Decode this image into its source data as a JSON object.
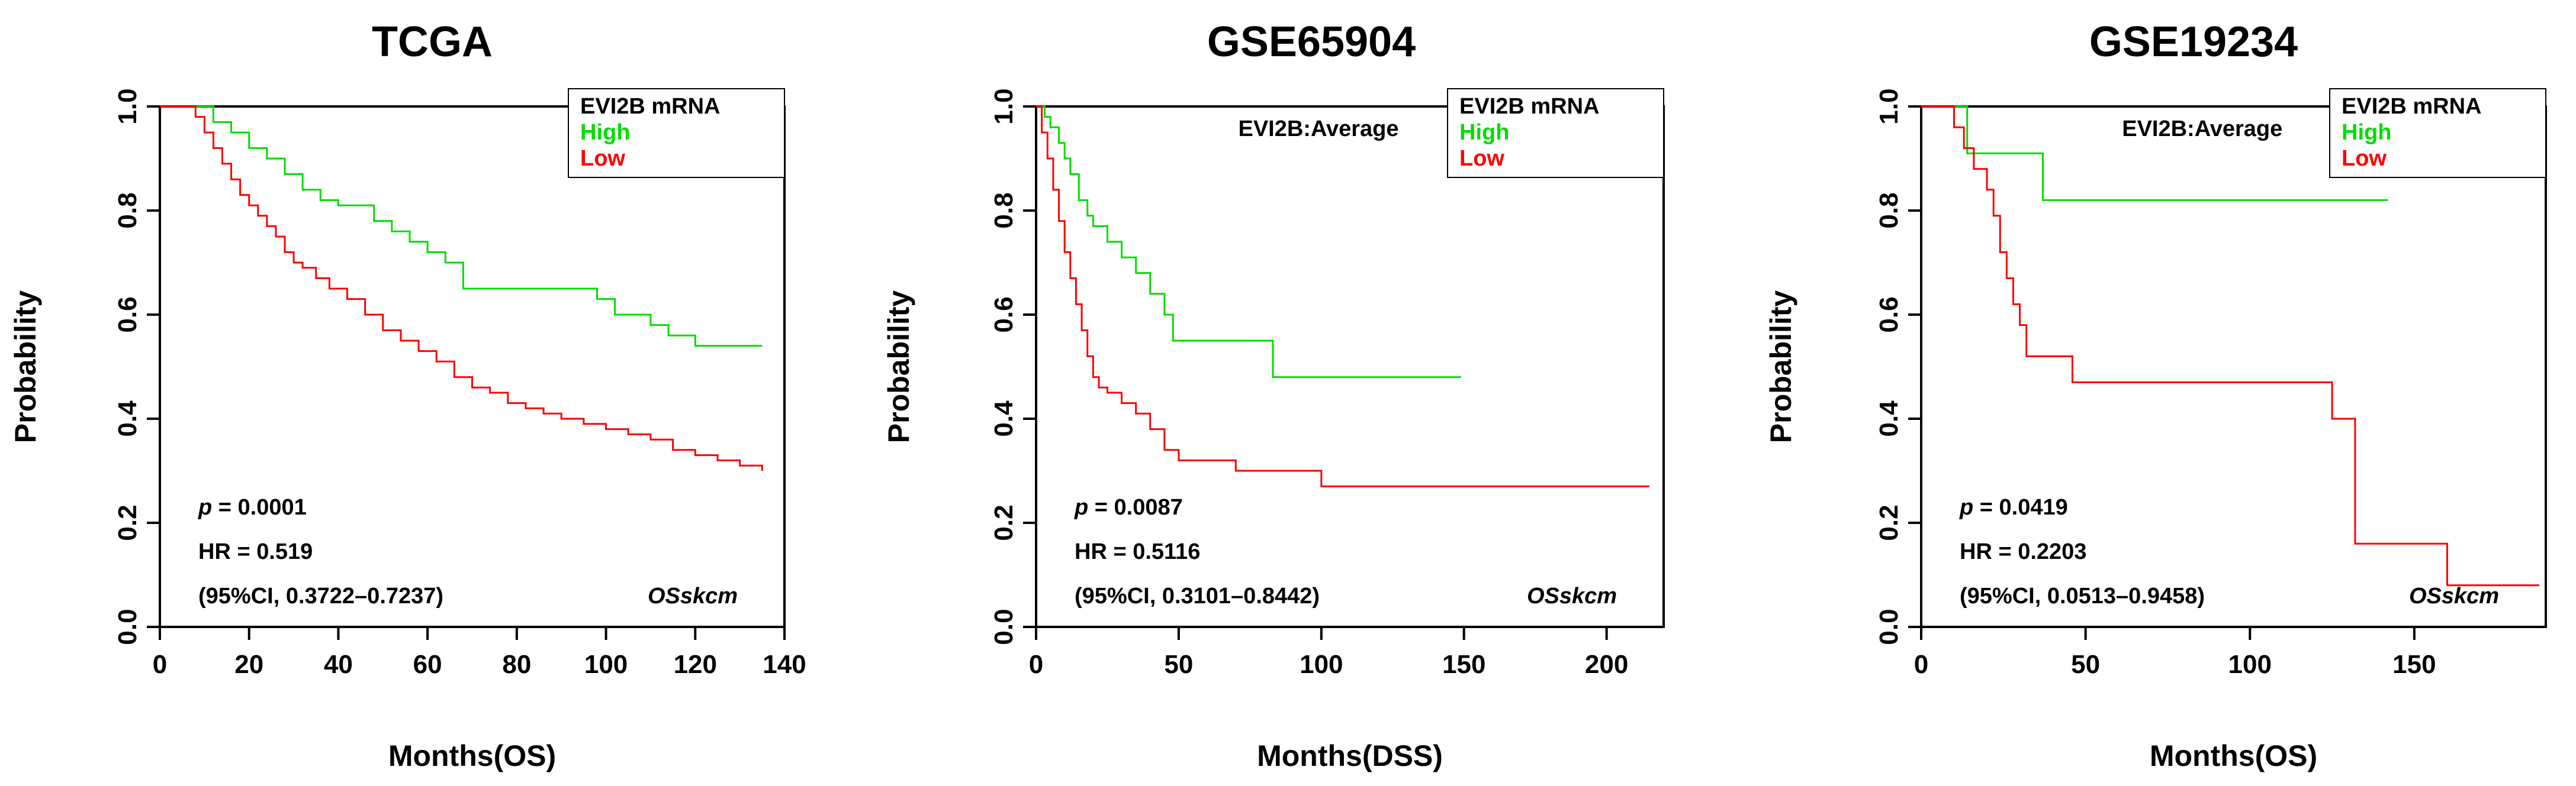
{
  "chart_data": [
    {
      "type": "line",
      "title": "TCGA",
      "xlabel": "Months(OS)",
      "ylabel": "Probability",
      "xlim": [
        0,
        140
      ],
      "ylim": [
        0,
        1
      ],
      "xticks": [
        0,
        20,
        40,
        60,
        80,
        100,
        120,
        140
      ],
      "yticks": [
        0.0,
        0.2,
        0.4,
        0.6,
        0.8,
        1.0
      ],
      "legend": {
        "title": "EVI2B mRNA",
        "position": "top-right",
        "entries": [
          {
            "label": "High",
            "color": "#00dd00"
          },
          {
            "label": "Low",
            "color": "#ff0000"
          }
        ]
      },
      "inset_label": "",
      "stats": {
        "p_prefix": "p",
        "p_value": "= 0.0001",
        "hr": "HR = 0.519",
        "ci": "(95%CI, 0.3722–0.7237)",
        "tag": "OSskcm"
      },
      "series": [
        {
          "name": "High",
          "color": "#00dd00",
          "x": [
            0,
            8,
            12,
            16,
            20,
            24,
            28,
            32,
            36,
            40,
            44,
            48,
            52,
            56,
            60,
            64,
            68,
            72,
            80,
            90,
            98,
            102,
            106,
            110,
            114,
            120,
            135
          ],
          "y": [
            1.0,
            1.0,
            0.97,
            0.95,
            0.92,
            0.9,
            0.87,
            0.84,
            0.82,
            0.81,
            0.81,
            0.78,
            0.76,
            0.74,
            0.72,
            0.7,
            0.65,
            0.65,
            0.65,
            0.65,
            0.63,
            0.6,
            0.6,
            0.58,
            0.56,
            0.54,
            0.54
          ]
        },
        {
          "name": "Low",
          "color": "#ff0000",
          "x": [
            0,
            5,
            8,
            10,
            12,
            14,
            16,
            18,
            20,
            22,
            24,
            26,
            28,
            30,
            32,
            35,
            38,
            42,
            46,
            50,
            54,
            58,
            62,
            66,
            70,
            74,
            78,
            82,
            86,
            90,
            95,
            100,
            105,
            110,
            115,
            120,
            125,
            130,
            135
          ],
          "y": [
            1.0,
            1.0,
            0.98,
            0.95,
            0.92,
            0.89,
            0.86,
            0.83,
            0.81,
            0.79,
            0.77,
            0.75,
            0.72,
            0.7,
            0.69,
            0.67,
            0.65,
            0.63,
            0.6,
            0.57,
            0.55,
            0.53,
            0.51,
            0.48,
            0.46,
            0.45,
            0.43,
            0.42,
            0.41,
            0.4,
            0.39,
            0.38,
            0.37,
            0.36,
            0.34,
            0.33,
            0.32,
            0.31,
            0.3
          ]
        }
      ]
    },
    {
      "type": "line",
      "title": "GSE65904",
      "xlabel": "Months(DSS)",
      "ylabel": "Probability",
      "xlim": [
        0,
        220
      ],
      "ylim": [
        0,
        1
      ],
      "xticks": [
        0,
        50,
        100,
        150,
        200
      ],
      "yticks": [
        0.0,
        0.2,
        0.4,
        0.6,
        0.8,
        1.0
      ],
      "legend": {
        "title": "EVI2B mRNA",
        "position": "top-right",
        "entries": [
          {
            "label": "High",
            "color": "#00dd00"
          },
          {
            "label": "Low",
            "color": "#ff0000"
          }
        ]
      },
      "inset_label": "EVI2B:Average",
      "stats": {
        "p_prefix": "p",
        "p_value": "= 0.0087",
        "hr": "HR = 0.5116",
        "ci": "(95%CI, 0.3101–0.8442)",
        "tag": "OSskcm"
      },
      "series": [
        {
          "name": "High",
          "color": "#00dd00",
          "x": [
            0,
            3,
            5,
            8,
            10,
            12,
            15,
            18,
            20,
            25,
            30,
            35,
            40,
            45,
            48,
            60,
            83,
            100,
            149
          ],
          "y": [
            1.0,
            0.98,
            0.96,
            0.93,
            0.9,
            0.87,
            0.82,
            0.79,
            0.77,
            0.74,
            0.71,
            0.68,
            0.64,
            0.6,
            0.55,
            0.55,
            0.48,
            0.48,
            0.48
          ]
        },
        {
          "name": "Low",
          "color": "#ff0000",
          "x": [
            0,
            2,
            4,
            6,
            8,
            10,
            12,
            14,
            16,
            18,
            20,
            22,
            25,
            30,
            35,
            40,
            45,
            50,
            60,
            70,
            85,
            100,
            215
          ],
          "y": [
            1.0,
            0.95,
            0.9,
            0.84,
            0.78,
            0.72,
            0.67,
            0.62,
            0.57,
            0.52,
            0.48,
            0.46,
            0.45,
            0.43,
            0.41,
            0.38,
            0.34,
            0.32,
            0.32,
            0.3,
            0.3,
            0.27,
            0.27
          ]
        }
      ]
    },
    {
      "type": "line",
      "title": "GSE19234",
      "xlabel": "Months(OS)",
      "ylabel": "Probability",
      "xlim": [
        0,
        190
      ],
      "ylim": [
        0,
        1
      ],
      "xticks": [
        0,
        50,
        100,
        150
      ],
      "yticks": [
        0.0,
        0.2,
        0.4,
        0.6,
        0.8,
        1.0
      ],
      "legend": {
        "title": "EVI2B mRNA",
        "position": "top-right",
        "entries": [
          {
            "label": "High",
            "color": "#00dd00"
          },
          {
            "label": "Low",
            "color": "#ff0000"
          }
        ]
      },
      "inset_label": "EVI2B:Average",
      "stats": {
        "p_prefix": "p",
        "p_value": "= 0.0419",
        "hr": "HR = 0.2203",
        "ci": "(95%CI, 0.0513–0.9458)",
        "tag": "OSskcm"
      },
      "series": [
        {
          "name": "High",
          "color": "#00dd00",
          "x": [
            0,
            14,
            37,
            142
          ],
          "y": [
            1.0,
            0.91,
            0.82,
            0.82
          ]
        },
        {
          "name": "Low",
          "color": "#ff0000",
          "x": [
            0,
            10,
            13,
            16,
            20,
            22,
            24,
            26,
            28,
            30,
            32,
            46,
            125,
            132,
            160,
            188
          ],
          "y": [
            1.0,
            0.96,
            0.92,
            0.88,
            0.84,
            0.79,
            0.72,
            0.67,
            0.62,
            0.58,
            0.52,
            0.47,
            0.4,
            0.16,
            0.08,
            0.08
          ]
        }
      ]
    }
  ]
}
